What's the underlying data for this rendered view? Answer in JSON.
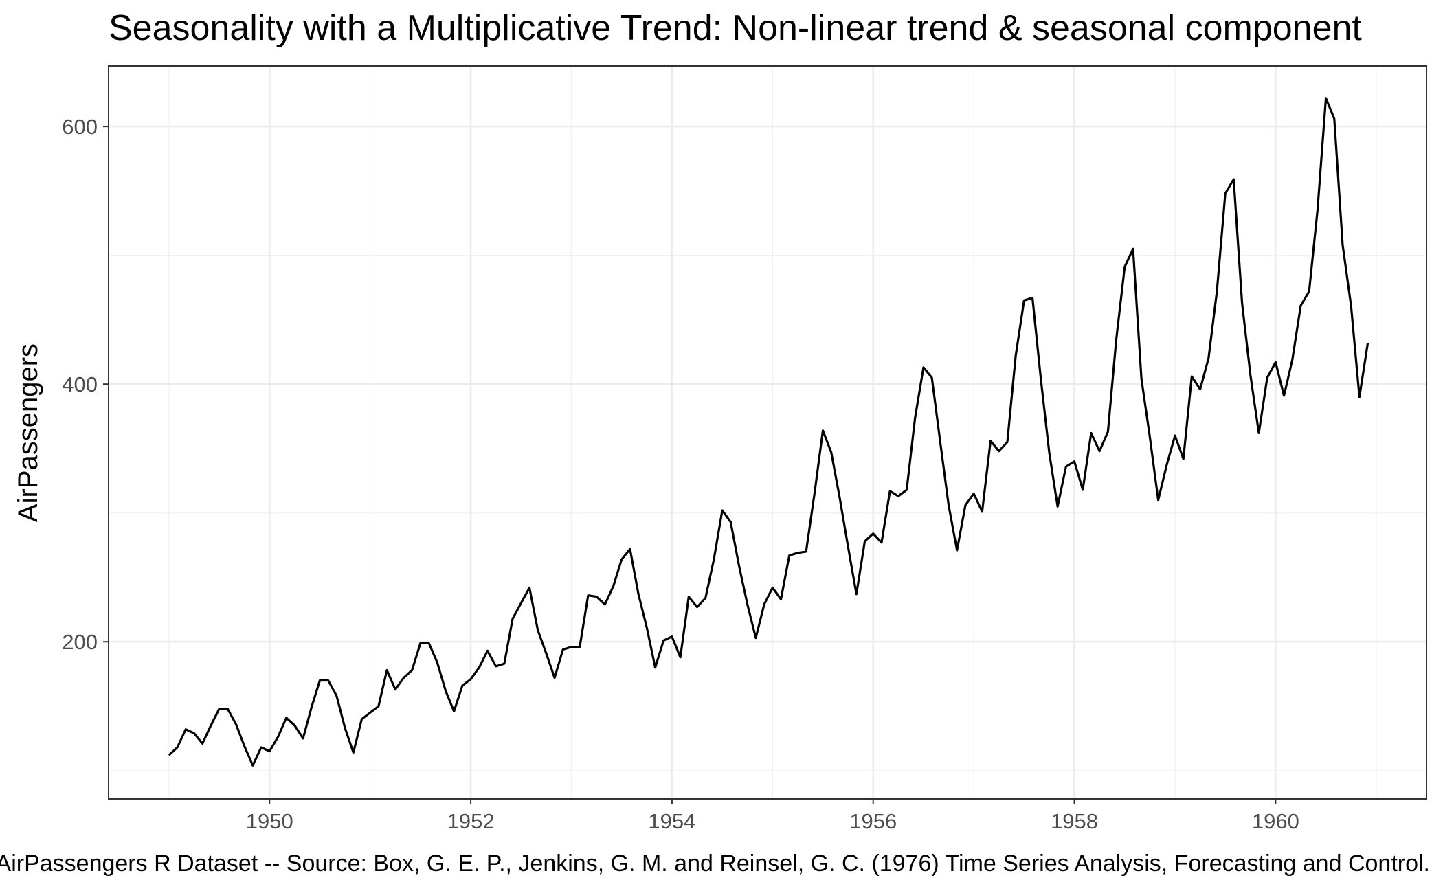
{
  "chart_data": {
    "type": "line",
    "title": "Seasonality with a Multiplicative Trend: Non-linear trend & seasonal component",
    "ylabel": "AirPassengers",
    "xlabel": "",
    "caption": "AirPassengers R Dataset -- Source: Box, G. E. P., Jenkins, G. M. and Reinsel, G. C. (1976) Time Series Analysis, Forecasting and Control.",
    "x_ticks": [
      1950,
      1952,
      1954,
      1956,
      1958,
      1960
    ],
    "y_ticks": [
      200,
      400,
      600
    ],
    "xlim": [
      1948.4,
      1961.5
    ],
    "ylim": [
      78,
      647
    ],
    "grid": true,
    "line_color": "#000000",
    "x_start": 1949.0,
    "x_step": 0.0833333,
    "values": [
      112,
      118,
      132,
      129,
      121,
      135,
      148,
      148,
      136,
      119,
      104,
      118,
      115,
      126,
      141,
      135,
      125,
      149,
      170,
      170,
      158,
      133,
      114,
      140,
      145,
      150,
      178,
      163,
      172,
      178,
      199,
      199,
      184,
      162,
      146,
      166,
      171,
      180,
      193,
      181,
      183,
      218,
      230,
      242,
      209,
      191,
      172,
      194,
      196,
      196,
      236,
      235,
      229,
      243,
      264,
      272,
      237,
      211,
      180,
      201,
      204,
      188,
      235,
      227,
      234,
      264,
      302,
      293,
      259,
      229,
      203,
      229,
      242,
      233,
      267,
      269,
      270,
      315,
      364,
      347,
      312,
      274,
      237,
      278,
      284,
      277,
      317,
      313,
      318,
      374,
      413,
      405,
      355,
      306,
      271,
      306,
      315,
      301,
      356,
      348,
      355,
      422,
      465,
      467,
      404,
      347,
      305,
      336,
      340,
      318,
      362,
      348,
      363,
      435,
      491,
      505,
      404,
      359,
      310,
      337,
      360,
      342,
      406,
      396,
      420,
      472,
      548,
      559,
      463,
      407,
      362,
      405,
      417,
      391,
      419,
      461,
      472,
      535,
      622,
      606,
      508,
      461,
      390,
      432
    ]
  }
}
